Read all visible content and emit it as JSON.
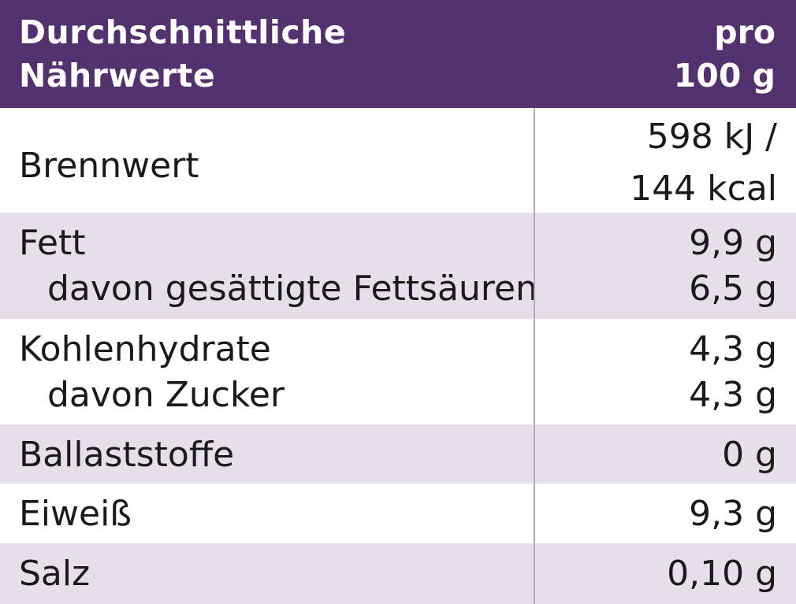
{
  "header": {
    "title_line1": "Durchschnittliche",
    "title_line2": "Nährwerte",
    "per_line1": "pro",
    "per_line2": "100 g"
  },
  "rows": [
    {
      "label": "Brennwert",
      "value_line1": "598 kJ /",
      "value_line2": "144 kcal"
    },
    {
      "label": "Fett",
      "value": "9,9 g",
      "sub_label": "davon gesättigte Fettsäuren",
      "sub_value": "6,5 g"
    },
    {
      "label": "Kohlenhydrate",
      "value": "4,3 g",
      "sub_label": "davon Zucker",
      "sub_value": "4,3 g"
    },
    {
      "label": "Ballaststoffe",
      "value": "0 g"
    },
    {
      "label": "Eiweiß",
      "value": "9,3 g"
    },
    {
      "label": "Salz",
      "value": "0,10 g"
    }
  ],
  "colors": {
    "header_bg": "#53306e",
    "shaded_row": "#e4dfe9",
    "divider": "#b7a6c6"
  }
}
